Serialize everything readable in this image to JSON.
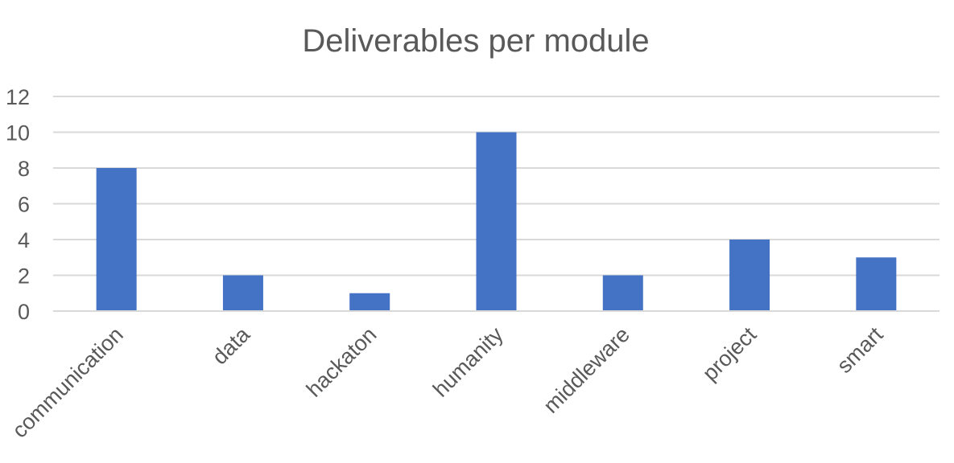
{
  "chart_data": {
    "type": "bar",
    "title": "Deliverables per module",
    "xlabel": "",
    "ylabel": "",
    "categories": [
      "communication",
      "data",
      "hackaton",
      "humanity",
      "middleware",
      "project",
      "smart"
    ],
    "values": [
      8,
      2,
      1,
      10,
      2,
      4,
      3
    ],
    "ylim": [
      0,
      12
    ],
    "yticks": [
      "0",
      "2",
      "4",
      "6",
      "8",
      "10",
      "12"
    ],
    "grid": true,
    "legend": "none",
    "bar_color": "#4472c4",
    "grid_color": "#d9d9d9",
    "text_color": "#595959"
  }
}
